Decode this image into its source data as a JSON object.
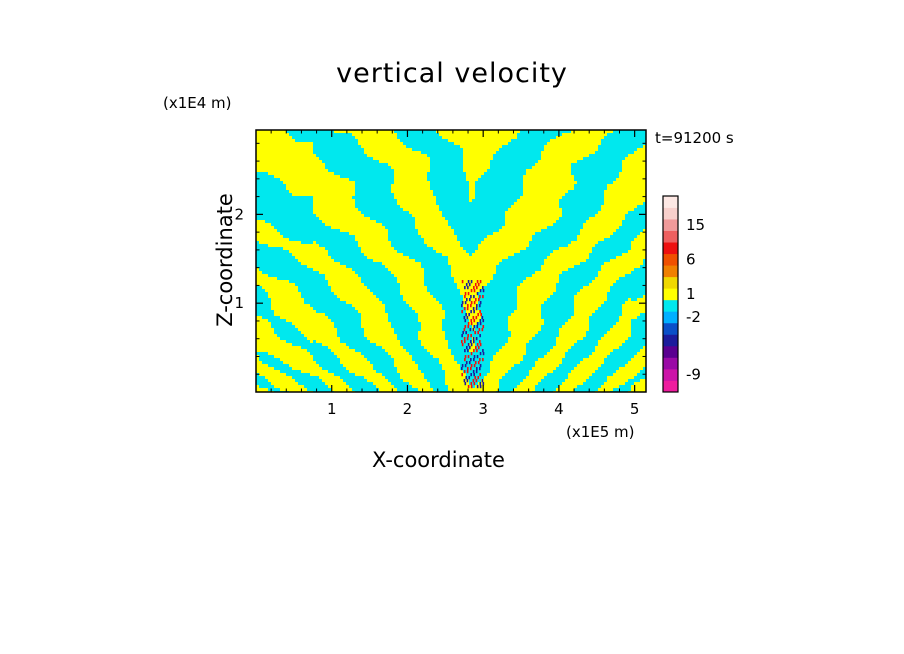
{
  "chart_data": {
    "type": "heatmap",
    "title": "vertical velocity",
    "xlabel": "X-coordinate",
    "ylabel": "Z-coordinate",
    "x_unit_label": "(x1E5 m)",
    "y_unit_label": "(x1E4 m)",
    "time_label": "t=91200 s",
    "xlim": [
      0,
      5.15
    ],
    "ylim": [
      0,
      2.95
    ],
    "x_ticks": [
      1,
      2,
      3,
      4,
      5
    ],
    "x_tick_labels": [
      "1",
      "2",
      "3",
      "4",
      "5"
    ],
    "y_ticks": [
      1,
      2
    ],
    "y_tick_labels": [
      "1",
      "2"
    ],
    "colorbar": {
      "bands": [
        {
          "color": "#ee1c9e"
        },
        {
          "color": "#cc14a8"
        },
        {
          "color": "#9a0aa6"
        },
        {
          "color": "#5a0090"
        },
        {
          "color": "#1c1c9c"
        },
        {
          "color": "#0a50c8"
        },
        {
          "color": "#00b0ff"
        },
        {
          "color": "#00e8ee"
        },
        {
          "color": "#ffff00"
        },
        {
          "color": "#f0d800"
        },
        {
          "color": "#f08000"
        },
        {
          "color": "#f05000"
        },
        {
          "color": "#ee1010"
        },
        {
          "color": "#ee6060"
        },
        {
          "color": "#f09a9a"
        },
        {
          "color": "#f8d0cc"
        },
        {
          "color": "#fde8e4"
        }
      ],
      "labels": [
        "-9",
        "-2",
        "1",
        "6",
        "15"
      ]
    },
    "colors": {
      "positive": "#ffff00",
      "negative": "#00e8ee",
      "strong_negative": "#1c1c9c",
      "strong_positive": "#ee1010"
    }
  }
}
